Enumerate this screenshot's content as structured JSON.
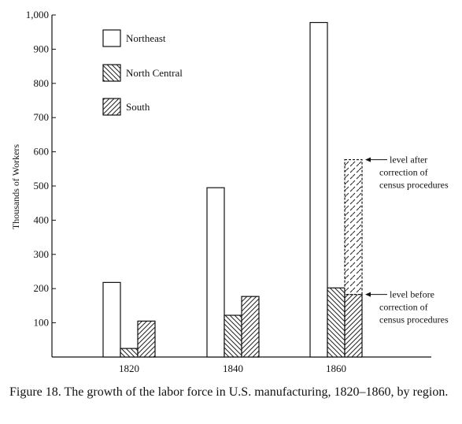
{
  "caption": "Figure 18. The growth of the labor force in U.S. manufacturing, 1820–1860, by region.",
  "chart_data": {
    "type": "bar",
    "ylabel": "Thousands of Workers",
    "xlabel": "",
    "ylim": [
      0,
      1000
    ],
    "yticks": [
      100,
      200,
      300,
      400,
      500,
      600,
      700,
      800,
      900,
      1000
    ],
    "ytick_labels": [
      "100",
      "200",
      "300",
      "400",
      "500",
      "600",
      "700",
      "800",
      "900",
      "1,000"
    ],
    "categories": [
      "1820",
      "1840",
      "1860"
    ],
    "series": [
      {
        "name": "Northeast",
        "values": [
          218,
          495,
          978
        ],
        "pattern": "none"
      },
      {
        "name": "North Central",
        "values": [
          25,
          122,
          202
        ],
        "pattern": "backslash"
      },
      {
        "name": "South",
        "values": [
          105,
          177,
          183
        ],
        "pattern": "slash"
      }
    ],
    "extra_bars": [
      {
        "category": "1860",
        "series": "South",
        "from": 183,
        "to": 577,
        "pattern": "dashed"
      }
    ],
    "annotations": [
      {
        "lines": [
          "level after",
          "correction of",
          "census procedures"
        ],
        "points_to": 577
      },
      {
        "lines": [
          "level before",
          "correction of",
          "census procedures"
        ],
        "points_to": 183
      }
    ],
    "legend_position": "top-left",
    "grid": false
  }
}
